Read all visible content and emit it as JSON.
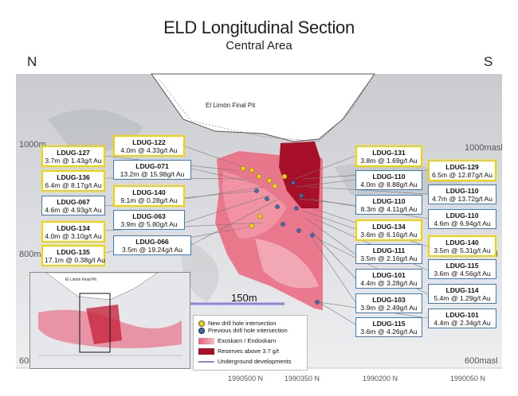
{
  "title": "ELD Longitudinal Section",
  "subtitle": "Central Area",
  "directions": {
    "left": "N",
    "right": "S"
  },
  "pit_label": "El Limón Final Pit",
  "inset_pit_label": "El Limón Final Pit",
  "scale_label": "150m",
  "elevations": {
    "left_1000": "1000m",
    "left_800": "800m",
    "left_600": "600",
    "right_1000": "1000masl",
    "right_800": "800masl",
    "right_600": "600masl"
  },
  "northings": [
    "1990500 N",
    "1990350 N",
    "1990200 N",
    "1990050 N"
  ],
  "legend": {
    "new_hole": "New drill hole intersection",
    "prev_hole": "Previous drill hole intersection",
    "exoskarn": "Exoskarn / Endoskarn",
    "reserves": "Reserves above 3.7 g/t",
    "underground": "Underground developments"
  },
  "colors": {
    "new_hole": "#f2d200",
    "prev_hole": "#3b6fb0",
    "reserves": "#a8102a",
    "skarn": "#e8607a"
  },
  "boxes": [
    {
      "id": "LDUG-127",
      "val": "3.7m @ 1.43g/t Au",
      "style": "yellow"
    },
    {
      "id": "LDUG-136",
      "val": "6.4m @ 8.17g/t Au",
      "style": "yellow"
    },
    {
      "id": "LDUG-067",
      "val": "4.6m @ 4.93g/t Au",
      "style": "blue"
    },
    {
      "id": "LDUG-134",
      "val": "4.0m @ 3.10g/t Au",
      "style": "yellow"
    },
    {
      "id": "LDUG-135",
      "val": "17.1m @ 0.38g/t Au",
      "style": "yellow"
    },
    {
      "id": "LDUG-122",
      "val": "4.0m @ 4.33g/t Au",
      "style": "yellow"
    },
    {
      "id": "LDUG-071",
      "val": "13.2m @ 15.98g/t Au",
      "style": "blue"
    },
    {
      "id": "LDUG-140",
      "val": "9.1m @ 0.28g/t Au",
      "style": "yellow"
    },
    {
      "id": "LDUG-063",
      "val": "3.9m @ 5.80g/t Au",
      "style": "blue"
    },
    {
      "id": "LDUG-066",
      "val": "3.5m @ 19.24g/t Au",
      "style": "blue"
    },
    {
      "id": "LDUG-131",
      "val": "3.8m @ 1.69g/t Au",
      "style": "yellow"
    },
    {
      "id": "LDUG-110",
      "val": "4.0m @ 8.88g/t Au",
      "style": "blue"
    },
    {
      "id": "LDUG-110",
      "val": "8.3m @ 4.11g/t Au",
      "style": "blue"
    },
    {
      "id": "LDUG-134",
      "val": "3.6m @ 6.16g/t Au",
      "style": "yellow"
    },
    {
      "id": "LDUG-111",
      "val": "3.5m @ 2.16g/t Au",
      "style": "blue"
    },
    {
      "id": "LDUG-101",
      "val": "4.4m @ 3.28g/t Au",
      "style": "blue"
    },
    {
      "id": "LDUG-103",
      "val": "3.9m @ 2.49g/t Au",
      "style": "blue"
    },
    {
      "id": "LDUG-115",
      "val": "3.6m @ 4.26g/t Au",
      "style": "blue"
    },
    {
      "id": "LDUG-129",
      "val": "6.5m @ 12.87g/t Au",
      "style": "yellow"
    },
    {
      "id": "LDUG-110",
      "val": "4.7m @ 13.72g/t Au",
      "style": "blue"
    },
    {
      "id": "LDUG-110",
      "val": "4.6m @ 6.94g/t Au",
      "style": "blue"
    },
    {
      "id": "LDUG-140",
      "val": "3.5m @ 5.31g/t Au",
      "style": "yellow"
    },
    {
      "id": "LDUG-115",
      "val": "3.6m @ 4.56g/t Au",
      "style": "blue"
    },
    {
      "id": "LDUG-114",
      "val": "5.4m @ 1.29g/t Au",
      "style": "blue"
    },
    {
      "id": "LDUG-101",
      "val": "4.4m @ 2.34g/t Au",
      "style": "blue"
    }
  ]
}
